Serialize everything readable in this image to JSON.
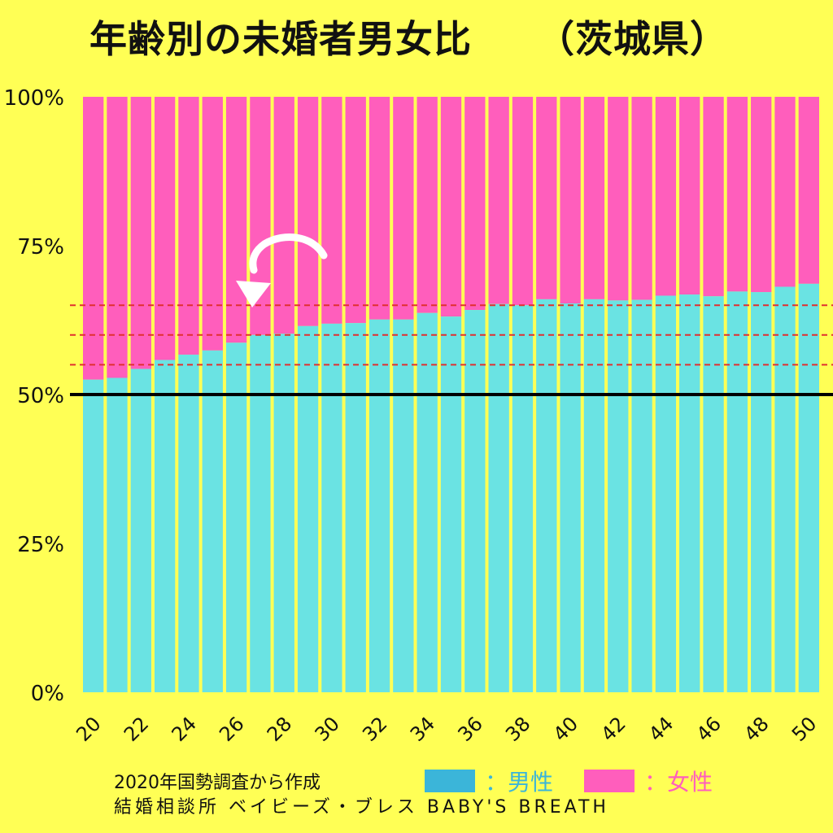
{
  "title": "年齢別の未婚者男女比",
  "subtitle": "（茨城県）",
  "colors": {
    "background": "#FFFF55",
    "male": "#6AE3E3",
    "female": "#FF5EBC",
    "male_legend": "#3BB5D9",
    "female_legend": "#FF5EBC",
    "guide": "#E03030",
    "baseline": "#000000",
    "separator": "#F2F05A"
  },
  "legend": {
    "male_label": "：男性",
    "female_label": "：女性",
    "male_icon": "blue-swatch",
    "female_icon": "pink-swatch"
  },
  "footer": {
    "source": "2020年国勢調査から作成",
    "brand": "結婚相談所 ベイビーズ・ブレス BABY'S BREATH"
  },
  "annotation": {
    "icon": "curved-arrow-icon"
  },
  "chart_data": {
    "type": "bar",
    "stacked": true,
    "x": [
      20,
      21,
      22,
      23,
      24,
      25,
      26,
      27,
      28,
      29,
      30,
      31,
      32,
      33,
      34,
      35,
      36,
      37,
      38,
      39,
      40,
      41,
      42,
      43,
      44,
      45,
      46,
      47,
      48,
      49,
      50
    ],
    "x_tick_labels": [
      "20",
      "22",
      "24",
      "26",
      "28",
      "30",
      "32",
      "34",
      "36",
      "38",
      "40",
      "42",
      "44",
      "46",
      "48",
      "50"
    ],
    "y_tick_labels": [
      "0%",
      "25%",
      "50%",
      "75%",
      "100%"
    ],
    "ylim": [
      0,
      100
    ],
    "series": [
      {
        "name": "男性",
        "color": "#6AE3E3",
        "values": [
          52.5,
          52.8,
          54.3,
          55.8,
          56.7,
          57.4,
          58.7,
          60.0,
          60.2,
          61.5,
          61.9,
          62.0,
          62.6,
          62.6,
          63.7,
          63.1,
          64.2,
          65.2,
          65.0,
          66.0,
          65.3,
          66.0,
          65.8,
          65.9,
          66.6,
          66.8,
          66.5,
          67.3,
          67.2,
          68.1,
          68.6
        ]
      },
      {
        "name": "女性",
        "color": "#FF5EBC",
        "values": [
          47.5,
          47.2,
          45.7,
          44.2,
          43.3,
          42.6,
          41.3,
          40.0,
          39.8,
          38.5,
          38.1,
          38.0,
          37.4,
          37.4,
          36.3,
          36.9,
          35.8,
          34.8,
          35.0,
          34.0,
          34.7,
          34.0,
          34.2,
          34.1,
          33.4,
          33.2,
          33.5,
          32.7,
          32.8,
          31.9,
          31.4
        ]
      }
    ],
    "reference_lines": [
      {
        "value": 50,
        "style": "solid",
        "color": "#000000"
      },
      {
        "value": 55,
        "style": "dashed",
        "color": "#E03030"
      },
      {
        "value": 60,
        "style": "dashed",
        "color": "#E03030"
      },
      {
        "value": 65,
        "style": "dashed",
        "color": "#E03030"
      }
    ],
    "grid": false,
    "legend_position": "bottom-right"
  }
}
